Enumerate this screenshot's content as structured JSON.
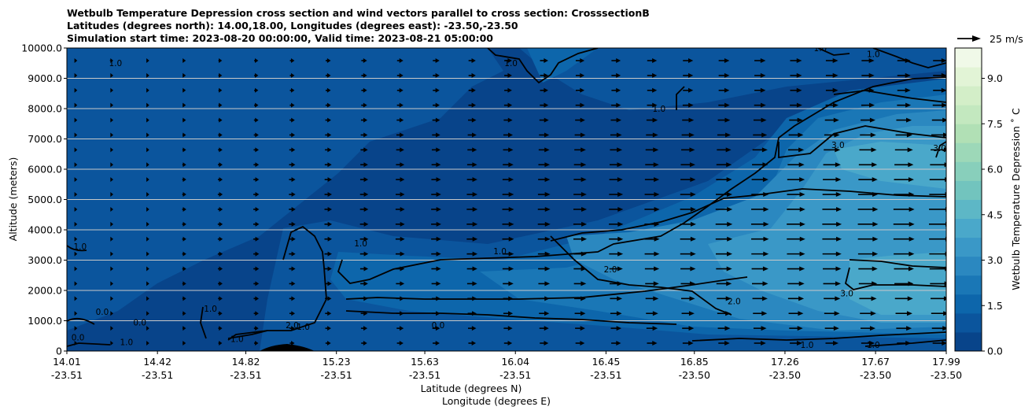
{
  "chart_data": {
    "type": "heatmap",
    "title_lines": [
      "Wetbulb Temperature Depression cross section and wind vectors parallel to cross section: CrosssectionB",
      "Latitudes (degrees north): 14.00,18.00, Longitudes (degrees east): -23.50,-23.50",
      "Simulation start time: 2023-08-20 00:00:00, Valid time: 2023-08-21 05:00:00"
    ],
    "ylabel": "Altitude (meters)",
    "xlabel_lines": [
      "Latitude (degrees N)",
      "Longitude (degrees E)"
    ],
    "ylim": [
      0,
      10000
    ],
    "y_ticks": [
      "0",
      "1000.0",
      "2000.0",
      "3000.0",
      "4000.0",
      "5000.0",
      "6000.0",
      "7000.0",
      "8000.0",
      "9000.0",
      "10000.0"
    ],
    "y_tick_values": [
      0,
      1000,
      2000,
      3000,
      4000,
      5000,
      6000,
      7000,
      8000,
      9000,
      10000
    ],
    "xlim": [
      14.01,
      17.99
    ],
    "x_ticks": [
      {
        "lat": "14.01",
        "lon": "-23.51",
        "value": 14.01
      },
      {
        "lat": "14.42",
        "lon": "-23.51",
        "value": 14.42
      },
      {
        "lat": "14.82",
        "lon": "-23.51",
        "value": 14.82
      },
      {
        "lat": "15.23",
        "lon": "-23.51",
        "value": 15.23
      },
      {
        "lat": "15.63",
        "lon": "-23.51",
        "value": 15.63
      },
      {
        "lat": "16.04",
        "lon": "-23.51",
        "value": 16.04
      },
      {
        "lat": "16.45",
        "lon": "-23.51",
        "value": 16.45
      },
      {
        "lat": "16.85",
        "lon": "-23.50",
        "value": 16.85
      },
      {
        "lat": "17.26",
        "lon": "-23.50",
        "value": 17.26
      },
      {
        "lat": "17.67",
        "lon": "-23.50",
        "value": 17.67
      },
      {
        "lat": "17.99",
        "lon": "-23.50",
        "value": 17.99
      }
    ],
    "grid": "horizontal",
    "colorbar": {
      "label": "Wetbulb Temperature Depression ˚ C",
      "ticks": [
        "0.0",
        "1.5",
        "3.0",
        "4.5",
        "6.0",
        "7.5",
        "9.0"
      ],
      "tick_values": [
        0,
        1.5,
        3.0,
        4.5,
        6.0,
        7.5,
        9.0
      ],
      "range": [
        0,
        10
      ],
      "colors": [
        "#08448a",
        "#0b559d",
        "#0d66ab",
        "#1a77b6",
        "#2b88c0",
        "#3a98c7",
        "#4aa8ca",
        "#5db7c6",
        "#72c4be",
        "#88cfbb",
        "#9dd8b8",
        "#b1e0b5",
        "#c3e8bf",
        "#d3eec8",
        "#e2f4d6",
        "#f0f9e8"
      ]
    },
    "quiver_key": {
      "label": "25 m/s",
      "value": 25
    },
    "field_samples": [
      {
        "lat": 14.2,
        "alt": 5000,
        "value": 0.3
      },
      {
        "lat": 15.0,
        "alt": 3400,
        "value": 1.2
      },
      {
        "lat": 16.0,
        "alt": 2200,
        "value": 1.8
      },
      {
        "lat": 16.9,
        "alt": 3200,
        "value": 2.4
      },
      {
        "lat": 17.5,
        "alt": 2500,
        "value": 3.1
      },
      {
        "lat": 17.5,
        "alt": 6500,
        "value": 2.6
      },
      {
        "lat": 16.2,
        "alt": 9500,
        "value": 0.7
      }
    ],
    "contour_labels": [
      {
        "text": "1.0",
        "lat": 14.23,
        "alt": 9400
      },
      {
        "text": "1.0",
        "lat": 14.07,
        "alt": 3350
      },
      {
        "text": "0.0",
        "lat": 14.17,
        "alt": 1200
      },
      {
        "text": "0.0",
        "lat": 14.34,
        "alt": 850
      },
      {
        "text": "0.0",
        "lat": 14.06,
        "alt": 350
      },
      {
        "text": "1.0",
        "lat": 14.28,
        "alt": 200
      },
      {
        "text": "1.0",
        "lat": 14.66,
        "alt": 1300
      },
      {
        "text": "1.0",
        "lat": 14.78,
        "alt": 300
      },
      {
        "text": "2.0",
        "lat": 15.03,
        "alt": 750
      },
      {
        "text": "1.0",
        "lat": 15.08,
        "alt": 700
      },
      {
        "text": "1.0",
        "lat": 15.34,
        "alt": 3450
      },
      {
        "text": "1.0",
        "lat": 15.97,
        "alt": 3200
      },
      {
        "text": "0.0",
        "lat": 15.69,
        "alt": 750
      },
      {
        "text": "1.0",
        "lat": 16.02,
        "alt": 9400
      },
      {
        "text": "2.0",
        "lat": 16.47,
        "alt": 2600
      },
      {
        "text": "2.0",
        "lat": 17.03,
        "alt": 1550
      },
      {
        "text": "1.0",
        "lat": 16.69,
        "alt": 7900
      },
      {
        "text": "1.0",
        "lat": 17.42,
        "alt": 9900
      },
      {
        "text": "1.0",
        "lat": 17.66,
        "alt": 9700
      },
      {
        "text": "3.0",
        "lat": 17.54,
        "alt": 1800
      },
      {
        "text": "3.0",
        "lat": 17.5,
        "alt": 6700
      },
      {
        "text": "3.0",
        "lat": 17.96,
        "alt": 6600
      },
      {
        "text": "1.0",
        "lat": 17.36,
        "alt": 100
      },
      {
        "text": "1.0",
        "lat": 17.66,
        "alt": 100
      }
    ]
  }
}
